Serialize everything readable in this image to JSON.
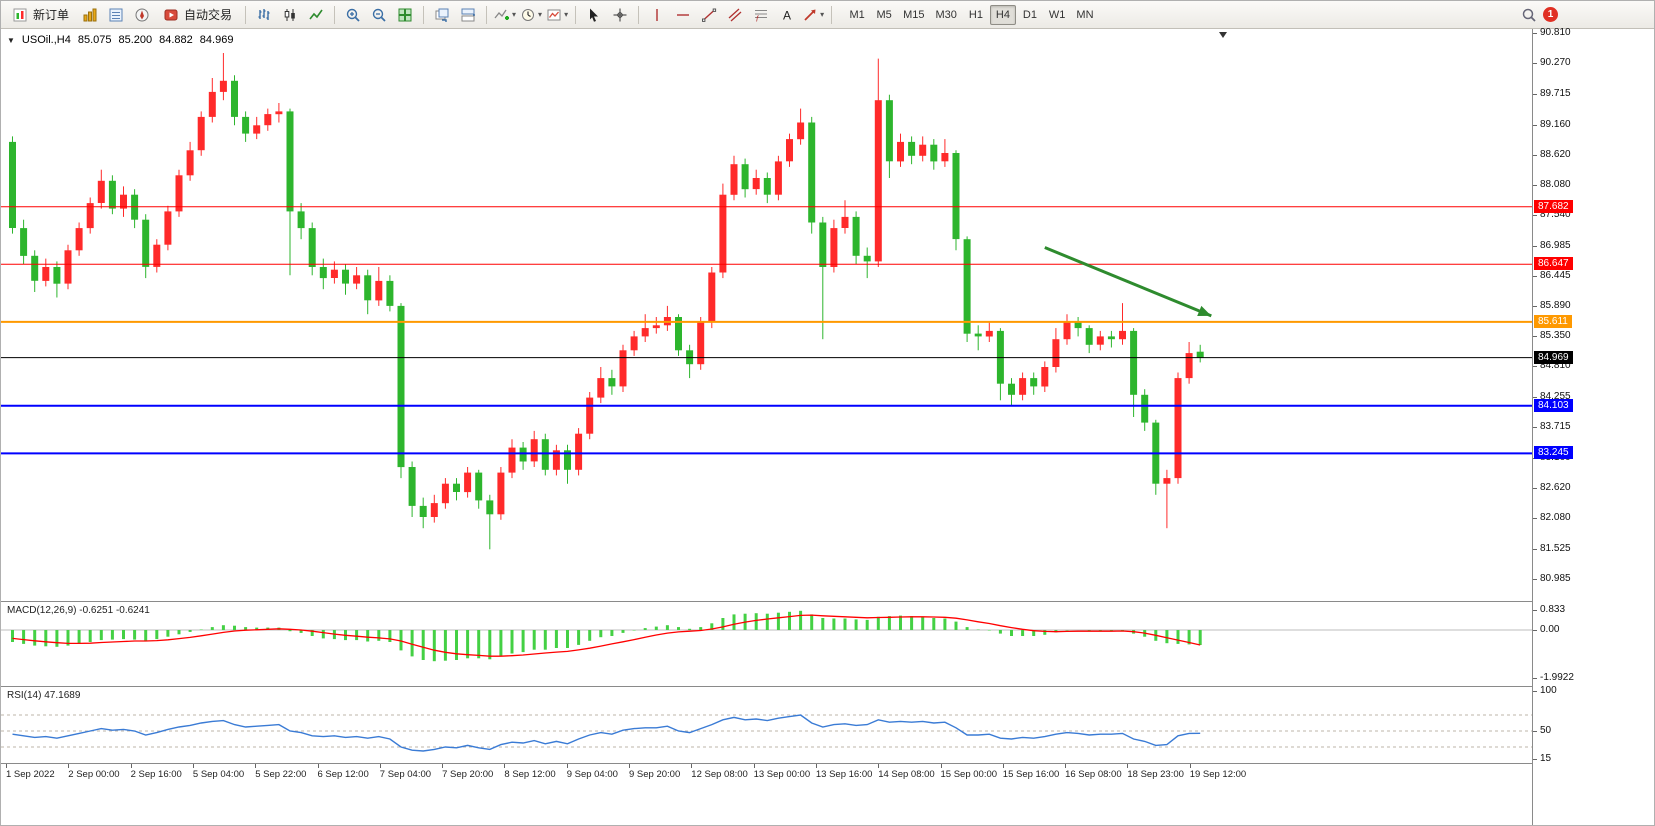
{
  "toolbar": {
    "new_order_label": "新订单",
    "auto_trading_label": "自动交易",
    "timeframes": [
      "M1",
      "M5",
      "M15",
      "M30",
      "H1",
      "H4",
      "D1",
      "W1",
      "MN"
    ],
    "active_timeframe": "H4",
    "notification_count": "1"
  },
  "chart": {
    "header": {
      "expand_glyph": "▼",
      "symbol_period": "USOil.,H4",
      "open": "85.075",
      "high": "85.200",
      "low": "84.882",
      "close": "84.969"
    },
    "price_axis": [
      "90.810",
      "90.270",
      "89.715",
      "89.160",
      "88.620",
      "88.080",
      "87.540",
      "86.985",
      "86.445",
      "85.890",
      "85.350",
      "84.810",
      "84.255",
      "83.715",
      "83.160",
      "82.620",
      "82.080",
      "81.525",
      "80.985"
    ],
    "time_axis": [
      "1 Sep 2022",
      "2 Sep 00:00",
      "2 Sep 16:00",
      "5 Sep 04:00",
      "5 Sep 22:00",
      "6 Sep 12:00",
      "7 Sep 04:00",
      "7 Sep 20:00",
      "8 Sep 12:00",
      "9 Sep 04:00",
      "9 Sep 20:00",
      "12 Sep 08:00",
      "13 Sep 00:00",
      "13 Sep 16:00",
      "14 Sep 08:00",
      "15 Sep 00:00",
      "15 Sep 16:00",
      "16 Sep 08:00",
      "18 Sep 23:00",
      "19 Sep 12:00"
    ],
    "hlines": [
      {
        "price": 87.682,
        "label": "87.682",
        "color": "#ff0000",
        "width": 1
      },
      {
        "price": 86.647,
        "label": "86.647",
        "color": "#ff0000",
        "width": 1
      },
      {
        "price": 85.611,
        "label": "85.611",
        "color": "#ff9900",
        "width": 2
      },
      {
        "price": 84.969,
        "label": "84.969",
        "color": "#000000",
        "width": 1
      },
      {
        "price": 84.103,
        "label": "84.103",
        "color": "#0000ff",
        "width": 2
      },
      {
        "price": 83.245,
        "label": "83.245",
        "color": "#0000ff",
        "width": 2
      }
    ]
  },
  "indicators": {
    "macd": {
      "name": "MACD(12,26,9)",
      "values_text": "-0.6251 -0.6241",
      "axis": [
        "0.833",
        "0.00",
        "-1.9922"
      ]
    },
    "rsi": {
      "name": "RSI(14)",
      "value_text": "47.1689",
      "axis": [
        "100",
        "50",
        "15"
      ]
    }
  },
  "theme": {
    "up_color": "#ff2a2a",
    "down_color": "#2db52d",
    "macd_color": "#44d044",
    "signal_color": "#ff0000",
    "rsi_color": "#3a7bd5",
    "arrow_color": "#2e8b2e"
  },
  "chart_data": {
    "type": "candlestick",
    "symbol": "USOil",
    "period": "H4",
    "price_range": [
      80.985,
      90.81
    ],
    "candles": [
      [
        88.85,
        88.95,
        87.2,
        87.3
      ],
      [
        87.3,
        87.45,
        86.65,
        86.8
      ],
      [
        86.8,
        86.9,
        86.15,
        86.35
      ],
      [
        86.35,
        86.75,
        86.25,
        86.6
      ],
      [
        86.6,
        86.7,
        86.05,
        86.3
      ],
      [
        86.3,
        87.0,
        86.2,
        86.9
      ],
      [
        86.9,
        87.4,
        86.8,
        87.3
      ],
      [
        87.3,
        87.85,
        87.2,
        87.75
      ],
      [
        87.75,
        88.35,
        87.65,
        88.15
      ],
      [
        88.15,
        88.25,
        87.55,
        87.65
      ],
      [
        87.65,
        88.05,
        87.5,
        87.9
      ],
      [
        87.9,
        88.0,
        87.3,
        87.45
      ],
      [
        87.45,
        87.55,
        86.4,
        86.6
      ],
      [
        86.6,
        87.1,
        86.5,
        87.0
      ],
      [
        87.0,
        87.7,
        86.9,
        87.6
      ],
      [
        87.6,
        88.35,
        87.5,
        88.25
      ],
      [
        88.25,
        88.85,
        88.15,
        88.7
      ],
      [
        88.7,
        89.4,
        88.6,
        89.3
      ],
      [
        89.3,
        90.0,
        89.2,
        89.75
      ],
      [
        89.75,
        90.45,
        89.6,
        89.95
      ],
      [
        89.95,
        90.05,
        89.15,
        89.3
      ],
      [
        89.3,
        89.4,
        88.85,
        89.0
      ],
      [
        89.0,
        89.3,
        88.9,
        89.15
      ],
      [
        89.15,
        89.45,
        89.05,
        89.35
      ],
      [
        89.35,
        89.55,
        89.2,
        89.4
      ],
      [
        89.4,
        89.45,
        86.45,
        87.6
      ],
      [
        87.6,
        87.75,
        87.1,
        87.3
      ],
      [
        87.3,
        87.4,
        86.45,
        86.6
      ],
      [
        86.6,
        86.75,
        86.2,
        86.4
      ],
      [
        86.4,
        86.7,
        86.3,
        86.55
      ],
      [
        86.55,
        86.65,
        86.1,
        86.3
      ],
      [
        86.3,
        86.6,
        86.2,
        86.45
      ],
      [
        86.45,
        86.55,
        85.75,
        86.0
      ],
      [
        86.0,
        86.6,
        85.9,
        86.35
      ],
      [
        86.35,
        86.45,
        85.8,
        85.9
      ],
      [
        85.9,
        85.95,
        82.8,
        83.0
      ],
      [
        83.0,
        83.1,
        82.1,
        82.3
      ],
      [
        82.3,
        82.45,
        81.9,
        82.1
      ],
      [
        82.1,
        82.5,
        82.0,
        82.35
      ],
      [
        82.35,
        82.8,
        82.25,
        82.7
      ],
      [
        82.7,
        82.8,
        82.4,
        82.55
      ],
      [
        82.55,
        83.0,
        82.45,
        82.9
      ],
      [
        82.9,
        82.95,
        82.25,
        82.4
      ],
      [
        82.4,
        82.5,
        81.52,
        82.15
      ],
      [
        82.15,
        83.0,
        82.05,
        82.9
      ],
      [
        82.9,
        83.5,
        82.8,
        83.35
      ],
      [
        83.35,
        83.45,
        82.95,
        83.1
      ],
      [
        83.1,
        83.65,
        83.0,
        83.5
      ],
      [
        83.5,
        83.6,
        82.85,
        82.95
      ],
      [
        82.95,
        83.4,
        82.85,
        83.3
      ],
      [
        83.3,
        83.4,
        82.7,
        82.95
      ],
      [
        82.95,
        83.7,
        82.85,
        83.6
      ],
      [
        83.6,
        84.35,
        83.5,
        84.25
      ],
      [
        84.25,
        84.8,
        84.15,
        84.6
      ],
      [
        84.6,
        84.75,
        84.3,
        84.45
      ],
      [
        84.45,
        85.2,
        84.35,
        85.1
      ],
      [
        85.1,
        85.45,
        85.0,
        85.35
      ],
      [
        85.35,
        85.75,
        85.25,
        85.5
      ],
      [
        85.5,
        85.7,
        85.4,
        85.55
      ],
      [
        85.55,
        85.9,
        85.45,
        85.7
      ],
      [
        85.7,
        85.75,
        85.0,
        85.1
      ],
      [
        85.1,
        85.2,
        84.6,
        84.85
      ],
      [
        84.85,
        85.7,
        84.75,
        85.6
      ],
      [
        85.6,
        86.6,
        85.5,
        86.5
      ],
      [
        86.5,
        88.1,
        86.4,
        87.9
      ],
      [
        87.9,
        88.6,
        87.8,
        88.45
      ],
      [
        88.45,
        88.55,
        87.85,
        88.0
      ],
      [
        88.0,
        88.35,
        87.9,
        88.2
      ],
      [
        88.2,
        88.3,
        87.75,
        87.9
      ],
      [
        87.9,
        88.6,
        87.8,
        88.5
      ],
      [
        88.5,
        89.0,
        88.4,
        88.9
      ],
      [
        88.9,
        89.45,
        88.8,
        89.2
      ],
      [
        89.2,
        89.3,
        87.2,
        87.4
      ],
      [
        87.4,
        87.5,
        85.3,
        86.6
      ],
      [
        86.6,
        87.45,
        86.5,
        87.3
      ],
      [
        87.3,
        87.8,
        87.2,
        87.5
      ],
      [
        87.5,
        87.6,
        86.65,
        86.8
      ],
      [
        86.8,
        86.95,
        86.4,
        86.7
      ],
      [
        86.7,
        90.35,
        86.6,
        89.6
      ],
      [
        89.6,
        89.7,
        88.2,
        88.5
      ],
      [
        88.5,
        89.0,
        88.4,
        88.85
      ],
      [
        88.85,
        88.95,
        88.45,
        88.6
      ],
      [
        88.6,
        88.95,
        88.5,
        88.8
      ],
      [
        88.8,
        88.9,
        88.35,
        88.5
      ],
      [
        88.5,
        88.9,
        88.4,
        88.65
      ],
      [
        88.65,
        88.7,
        86.9,
        87.1
      ],
      [
        87.1,
        87.15,
        85.25,
        85.4
      ],
      [
        85.4,
        85.55,
        85.1,
        85.35
      ],
      [
        85.35,
        85.6,
        85.25,
        85.45
      ],
      [
        85.45,
        85.5,
        84.2,
        84.5
      ],
      [
        84.5,
        84.6,
        84.1,
        84.3
      ],
      [
        84.3,
        84.7,
        84.2,
        84.6
      ],
      [
        84.6,
        84.7,
        84.3,
        84.45
      ],
      [
        84.45,
        84.9,
        84.35,
        84.8
      ],
      [
        84.8,
        85.5,
        84.7,
        85.3
      ],
      [
        85.3,
        85.75,
        85.2,
        85.6
      ],
      [
        85.6,
        85.7,
        85.35,
        85.5
      ],
      [
        85.5,
        85.55,
        85.05,
        85.2
      ],
      [
        85.2,
        85.45,
        85.1,
        85.35
      ],
      [
        85.35,
        85.45,
        85.15,
        85.3
      ],
      [
        85.3,
        85.95,
        85.2,
        85.45
      ],
      [
        85.45,
        85.5,
        83.9,
        84.3
      ],
      [
        84.3,
        84.4,
        83.65,
        83.8
      ],
      [
        83.8,
        83.85,
        82.5,
        82.7
      ],
      [
        82.7,
        82.95,
        81.9,
        82.8
      ],
      [
        82.8,
        84.7,
        82.7,
        84.6
      ],
      [
        84.6,
        85.25,
        84.5,
        85.05
      ],
      [
        85.075,
        85.2,
        84.882,
        84.969
      ]
    ],
    "macd_histogram": [
      -0.5,
      -0.58,
      -0.65,
      -0.68,
      -0.7,
      -0.65,
      -0.58,
      -0.5,
      -0.42,
      -0.4,
      -0.38,
      -0.4,
      -0.45,
      -0.38,
      -0.28,
      -0.18,
      -0.08,
      0.02,
      0.12,
      0.2,
      0.18,
      0.12,
      0.1,
      0.1,
      0.1,
      -0.05,
      -0.12,
      -0.25,
      -0.35,
      -0.38,
      -0.42,
      -0.42,
      -0.48,
      -0.45,
      -0.5,
      -0.85,
      -1.1,
      -1.25,
      -1.3,
      -1.28,
      -1.25,
      -1.18,
      -1.18,
      -1.22,
      -1.1,
      -0.98,
      -0.92,
      -0.82,
      -0.82,
      -0.75,
      -0.75,
      -0.62,
      -0.45,
      -0.3,
      -0.25,
      -0.12,
      -0.02,
      0.08,
      0.14,
      0.2,
      0.12,
      0.05,
      0.12,
      0.28,
      0.5,
      0.65,
      0.68,
      0.7,
      0.68,
      0.72,
      0.76,
      0.8,
      0.65,
      0.5,
      0.48,
      0.48,
      0.44,
      0.42,
      0.55,
      0.58,
      0.6,
      0.58,
      0.56,
      0.5,
      0.48,
      0.35,
      0.12,
      0.02,
      -0.02,
      -0.15,
      -0.25,
      -0.25,
      -0.25,
      -0.2,
      -0.1,
      -0.02,
      0.0,
      -0.05,
      -0.05,
      -0.05,
      -0.02,
      -0.15,
      -0.28,
      -0.45,
      -0.55,
      -0.58,
      -0.6,
      -0.6251
    ],
    "macd_signal": [
      -0.35,
      -0.4,
      -0.45,
      -0.49,
      -0.53,
      -0.56,
      -0.56,
      -0.55,
      -0.52,
      -0.5,
      -0.48,
      -0.46,
      -0.46,
      -0.44,
      -0.41,
      -0.36,
      -0.31,
      -0.24,
      -0.17,
      -0.1,
      -0.04,
      -0.01,
      0.01,
      0.03,
      0.05,
      0.03,
      0.0,
      -0.05,
      -0.11,
      -0.17,
      -0.22,
      -0.26,
      -0.3,
      -0.33,
      -0.37,
      -0.46,
      -0.59,
      -0.72,
      -0.84,
      -0.93,
      -0.99,
      -1.03,
      -1.06,
      -1.09,
      -1.09,
      -1.07,
      -1.04,
      -1.0,
      -0.96,
      -0.92,
      -0.89,
      -0.83,
      -0.76,
      -0.67,
      -0.58,
      -0.49,
      -0.4,
      -0.3,
      -0.21,
      -0.13,
      -0.08,
      -0.05,
      -0.02,
      0.04,
      0.13,
      0.24,
      0.33,
      0.4,
      0.46,
      0.51,
      0.56,
      0.61,
      0.62,
      0.59,
      0.57,
      0.55,
      0.53,
      0.51,
      0.52,
      0.53,
      0.54,
      0.55,
      0.55,
      0.54,
      0.53,
      0.49,
      0.42,
      0.34,
      0.27,
      0.18,
      0.1,
      0.03,
      -0.03,
      -0.06,
      -0.07,
      -0.06,
      -0.05,
      -0.05,
      -0.05,
      -0.05,
      -0.04,
      -0.07,
      -0.13,
      -0.22,
      -0.32,
      -0.42,
      -0.52,
      -0.6241
    ],
    "rsi": [
      46,
      44,
      42,
      43,
      41,
      44,
      47,
      50,
      53,
      51,
      52,
      50,
      45,
      48,
      52,
      55,
      57,
      60,
      62,
      63,
      58,
      55,
      56,
      57,
      58,
      50,
      48,
      44,
      43,
      44,
      42,
      43,
      41,
      43,
      40,
      30,
      26,
      25,
      27,
      30,
      29,
      32,
      29,
      27,
      33,
      36,
      35,
      38,
      34,
      37,
      34,
      40,
      45,
      48,
      46,
      51,
      53,
      54,
      54,
      56,
      50,
      48,
      53,
      58,
      64,
      67,
      64,
      65,
      63,
      66,
      68,
      70,
      60,
      55,
      58,
      59,
      57,
      58,
      64,
      61,
      62,
      61,
      62,
      60,
      61,
      54,
      45,
      45,
      46,
      41,
      40,
      42,
      41,
      43,
      46,
      48,
      47,
      45,
      46,
      46,
      47,
      40,
      37,
      32,
      33,
      44,
      47,
      47.17
    ],
    "annotation_arrow": {
      "from_bar": 93,
      "from_price": 86.95,
      "to_bar": 108,
      "to_price": 85.72
    }
  }
}
